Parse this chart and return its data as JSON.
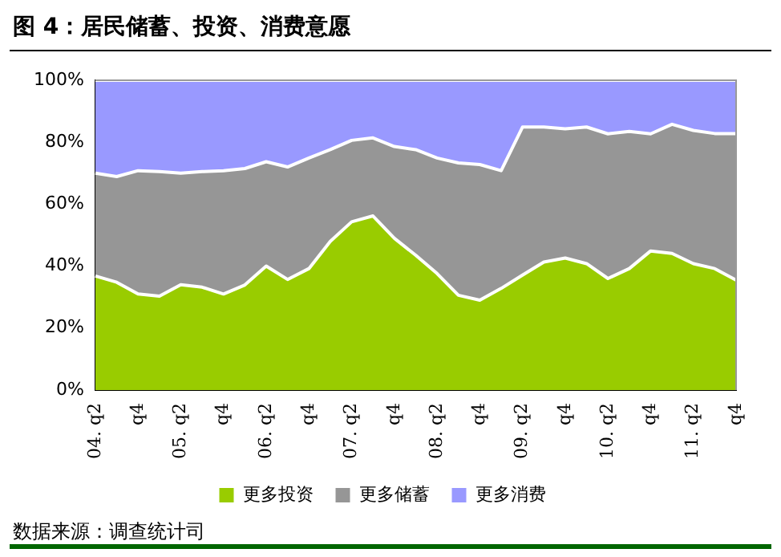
{
  "chart_data": {
    "type": "area",
    "title": "图 4：居民储蓄、投资、消费意愿",
    "stacked": true,
    "categories": [
      "04. q2",
      null,
      "q4",
      null,
      "05. q2",
      null,
      "q4",
      null,
      "06. q2",
      null,
      "q4",
      null,
      "07. q2",
      null,
      "q4",
      null,
      "08. q2",
      null,
      "q4",
      null,
      "09. q2",
      null,
      "q4",
      null,
      "10. q2",
      null,
      "q4",
      null,
      "11. q2",
      null,
      "q4"
    ],
    "series": [
      {
        "name": "更多投资",
        "color": "#99cc00",
        "values": [
          36.8,
          34.8,
          31,
          30.3,
          34,
          33.2,
          31,
          33.9,
          40,
          35.7,
          39.2,
          48,
          54.3,
          56.2,
          49,
          43.5,
          37.6,
          30.6,
          29,
          32.8,
          37.1,
          41.3,
          42.6,
          40.8,
          36,
          39.2,
          44.9,
          44.1,
          40.8,
          39.2,
          35.5
        ]
      },
      {
        "name": "更多储蓄",
        "color": "#969696",
        "values": [
          33.2,
          34.1,
          39.8,
          40.2,
          36,
          37.3,
          39.8,
          37.6,
          33.7,
          36.3,
          35.7,
          29.6,
          26.3,
          25.2,
          29.6,
          34.1,
          37.3,
          42.7,
          43.8,
          38,
          47.8,
          43.6,
          41.7,
          44.1,
          46.7,
          44.3,
          37.8,
          41.7,
          43,
          43.6,
          47.3
        ]
      },
      {
        "name": "更多消费",
        "color": "#9999ff",
        "values": [
          30,
          31.1,
          29.2,
          29.5,
          30,
          29.5,
          29.2,
          28.5,
          26.3,
          28,
          25.1,
          22.4,
          19.4,
          18.6,
          21.4,
          22.4,
          25.1,
          26.7,
          27.2,
          29.2,
          15.1,
          15.1,
          15.7,
          15.1,
          17.3,
          16.5,
          17.3,
          14.2,
          16.2,
          17.2,
          17.2
        ]
      }
    ],
    "ylim": [
      0,
      100
    ],
    "yticks": [
      {
        "value": 0,
        "label": "0%"
      },
      {
        "value": 20,
        "label": "20%"
      },
      {
        "value": 40,
        "label": "40%"
      },
      {
        "value": 60,
        "label": "60%"
      },
      {
        "value": 80,
        "label": "80%"
      },
      {
        "value": 100,
        "label": "100%"
      }
    ],
    "grid": false,
    "legend": "bottom",
    "annotations": [
      "数据来源：调查统计司"
    ]
  }
}
